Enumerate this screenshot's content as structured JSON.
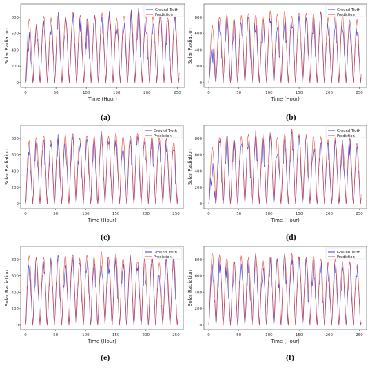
{
  "figure": {
    "panel_labels": [
      "(a)",
      "(b)",
      "(c)",
      "(d)",
      "(e)",
      "(f)"
    ]
  },
  "colors": {
    "ground_truth": "#3b3bd9",
    "prediction": "#e0473a",
    "axis": "#444444"
  },
  "chart_data": [
    {
      "type": "line",
      "panel": "(a)",
      "xlabel": "Time (Hour)",
      "ylabel": "Solar Radiation",
      "xlim": [
        -8,
        262
      ],
      "ylim": [
        -60,
        960
      ],
      "xticks": [
        0,
        50,
        100,
        150,
        200,
        250
      ],
      "yticks": [
        0,
        200,
        400,
        600,
        800
      ],
      "legend_position": "top-right",
      "series": [
        {
          "name": "Ground Truth",
          "color_key": "ground_truth",
          "day_peaks": [
            650,
            740,
            850,
            820,
            880,
            860,
            900,
            880,
            820,
            870,
            900,
            880,
            820,
            870,
            900,
            910,
            880,
            850,
            900,
            840,
            870,
            830
          ]
        },
        {
          "name": "Prediction",
          "color_key": "prediction",
          "day_peaks": [
            800,
            720,
            840,
            800,
            860,
            830,
            880,
            860,
            800,
            850,
            880,
            860,
            800,
            850,
            880,
            900,
            860,
            830,
            880,
            820,
            850,
            820
          ]
        }
      ]
    },
    {
      "type": "line",
      "panel": "(b)",
      "xlabel": "Time (Hour)",
      "ylabel": "Solar Radiation",
      "xlim": [
        -8,
        262
      ],
      "ylim": [
        -60,
        960
      ],
      "xticks": [
        0,
        50,
        100,
        150,
        200,
        250
      ],
      "yticks": [
        0,
        200,
        400,
        600,
        800
      ],
      "legend_position": "top-right",
      "series": [
        {
          "name": "Ground Truth",
          "color_key": "ground_truth",
          "day_peaks": [
            500,
            860,
            880,
            820,
            860,
            900,
            880,
            850,
            900,
            880,
            900,
            860,
            900,
            880,
            870,
            900,
            850,
            880,
            860,
            820,
            800,
            850
          ]
        },
        {
          "name": "Prediction",
          "color_key": "prediction",
          "day_peaks": [
            720,
            840,
            860,
            800,
            840,
            880,
            860,
            830,
            880,
            860,
            880,
            840,
            880,
            860,
            850,
            880,
            830,
            860,
            840,
            800,
            780,
            700
          ]
        }
      ]
    },
    {
      "type": "line",
      "panel": "(c)",
      "xlabel": "Time (Hour)",
      "ylabel": "Solar Radiation",
      "xlim": [
        -8,
        262
      ],
      "ylim": [
        -60,
        960
      ],
      "xticks": [
        0,
        50,
        100,
        150,
        200,
        250
      ],
      "yticks": [
        0,
        200,
        400,
        600,
        800
      ],
      "legend_position": "top-right",
      "series": [
        {
          "name": "Ground Truth",
          "color_key": "ground_truth",
          "day_peaks": [
            800,
            860,
            880,
            820,
            860,
            880,
            900,
            850,
            880,
            870,
            900,
            860,
            900,
            880,
            870,
            900,
            860,
            880,
            850,
            820,
            800,
            830
          ]
        },
        {
          "name": "Prediction",
          "color_key": "prediction",
          "day_peaks": [
            780,
            840,
            860,
            800,
            840,
            860,
            880,
            830,
            860,
            850,
            880,
            840,
            880,
            860,
            850,
            880,
            840,
            860,
            830,
            800,
            780,
            800
          ]
        }
      ]
    },
    {
      "type": "line",
      "panel": "(d)",
      "xlabel": "Time (Hour)",
      "ylabel": "Solar Radiation",
      "xlim": [
        -8,
        262
      ],
      "ylim": [
        -60,
        960
      ],
      "xticks": [
        0,
        50,
        100,
        150,
        200,
        250
      ],
      "yticks": [
        0,
        200,
        400,
        600,
        800
      ],
      "legend_position": "top-right",
      "series": [
        {
          "name": "Ground Truth",
          "color_key": "ground_truth",
          "day_peaks": [
            520,
            850,
            880,
            840,
            860,
            880,
            900,
            870,
            880,
            860,
            900,
            940,
            900,
            880,
            870,
            860,
            820,
            850,
            800,
            830,
            780,
            800
          ]
        },
        {
          "name": "Prediction",
          "color_key": "prediction",
          "day_peaks": [
            700,
            830,
            860,
            820,
            840,
            860,
            880,
            850,
            860,
            840,
            880,
            920,
            880,
            860,
            850,
            840,
            800,
            830,
            780,
            810,
            760,
            760
          ]
        }
      ]
    },
    {
      "type": "line",
      "panel": "(e)",
      "xlabel": "Time (Hour)",
      "ylabel": "Solar Radiation",
      "xlim": [
        -8,
        262
      ],
      "ylim": [
        -60,
        960
      ],
      "xticks": [
        0,
        50,
        100,
        150,
        200,
        250
      ],
      "yticks": [
        0,
        200,
        400,
        600,
        800
      ],
      "legend_position": "top-right",
      "series": [
        {
          "name": "Ground Truth",
          "color_key": "ground_truth",
          "day_peaks": [
            800,
            860,
            880,
            820,
            860,
            880,
            900,
            850,
            880,
            870,
            920,
            880,
            900,
            860,
            870,
            820,
            860,
            880,
            800,
            840,
            860,
            650
          ]
        },
        {
          "name": "Prediction",
          "color_key": "prediction",
          "day_peaks": [
            880,
            840,
            860,
            800,
            840,
            860,
            880,
            830,
            860,
            850,
            900,
            860,
            880,
            840,
            850,
            800,
            840,
            860,
            780,
            820,
            840,
            600
          ]
        }
      ]
    },
    {
      "type": "line",
      "panel": "(f)",
      "xlabel": "Time (Hour)",
      "ylabel": "Solar Radiation",
      "xlim": [
        -8,
        262
      ],
      "ylim": [
        -60,
        960
      ],
      "xticks": [
        0,
        50,
        100,
        150,
        200,
        250
      ],
      "yticks": [
        0,
        200,
        400,
        600,
        800
      ],
      "legend_position": "top-right",
      "series": [
        {
          "name": "Ground Truth",
          "color_key": "ground_truth",
          "day_peaks": [
            800,
            880,
            860,
            820,
            880,
            860,
            900,
            850,
            880,
            860,
            900,
            920,
            880,
            860,
            870,
            860,
            820,
            850,
            800,
            820,
            780,
            200
          ]
        },
        {
          "name": "Prediction",
          "color_key": "prediction",
          "day_peaks": [
            900,
            860,
            840,
            800,
            860,
            840,
            880,
            830,
            860,
            840,
            880,
            900,
            860,
            840,
            850,
            840,
            800,
            830,
            780,
            800,
            760,
            180
          ]
        }
      ]
    }
  ]
}
